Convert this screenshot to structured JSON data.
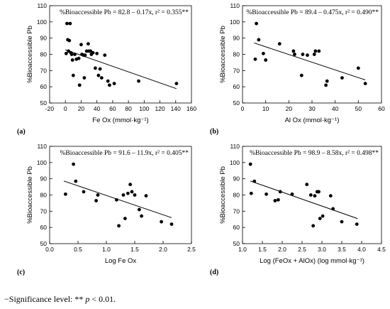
{
  "footnote": {
    "prefix": "−Significance level: ** ",
    "p_symbol": "p",
    "suffix": " < 0.01."
  },
  "chart_data": [
    {
      "type": "scatter",
      "panel_label": "(a)",
      "equation": "%Bioaccessible Pb = 82.8 – 0.17x, r² = 0.355**",
      "xlabel": "Fe Ox (mmol·kg⁻¹)",
      "ylabel": "%Bioaccessible Pb",
      "xlim": [
        -20,
        160
      ],
      "ylim": [
        50,
        110
      ],
      "xticks": [
        -20,
        0,
        20,
        40,
        60,
        80,
        100,
        120,
        140,
        160
      ],
      "yticks": [
        50,
        60,
        70,
        80,
        90,
        100,
        110
      ],
      "grid": false,
      "trendline": {
        "intercept": 82.8,
        "slope": -0.17,
        "x_range": [
          0,
          141
        ]
      },
      "points": [
        {
          "x": 1,
          "y": 80.5
        },
        {
          "x": 2,
          "y": 99
        },
        {
          "x": 3,
          "y": 89
        },
        {
          "x": 4,
          "y": 82
        },
        {
          "x": 5,
          "y": 88.5
        },
        {
          "x": 6,
          "y": 99
        },
        {
          "x": 7,
          "y": 81
        },
        {
          "x": 8,
          "y": 80
        },
        {
          "x": 9,
          "y": 76.5
        },
        {
          "x": 10,
          "y": 67
        },
        {
          "x": 12,
          "y": 80
        },
        {
          "x": 14,
          "y": 77
        },
        {
          "x": 17,
          "y": 77.5
        },
        {
          "x": 18,
          "y": 61
        },
        {
          "x": 20,
          "y": 86
        },
        {
          "x": 21,
          "y": 80
        },
        {
          "x": 23,
          "y": 79.5
        },
        {
          "x": 24,
          "y": 65.5
        },
        {
          "x": 25,
          "y": 79.5
        },
        {
          "x": 27,
          "y": 82
        },
        {
          "x": 29,
          "y": 86.5
        },
        {
          "x": 30,
          "y": 82
        },
        {
          "x": 32,
          "y": 82
        },
        {
          "x": 33,
          "y": 80
        },
        {
          "x": 35,
          "y": 81
        },
        {
          "x": 38,
          "y": 71.5
        },
        {
          "x": 40,
          "y": 80.5
        },
        {
          "x": 42,
          "y": 67
        },
        {
          "x": 44,
          "y": 71
        },
        {
          "x": 46,
          "y": 65.5
        },
        {
          "x": 50,
          "y": 79.5
        },
        {
          "x": 54,
          "y": 63.5
        },
        {
          "x": 56,
          "y": 61
        },
        {
          "x": 62,
          "y": 62
        },
        {
          "x": 93,
          "y": 63.5
        },
        {
          "x": 141,
          "y": 62
        }
      ]
    },
    {
      "type": "scatter",
      "panel_label": "(b)",
      "equation": "%Bioaccessible Pb = 89.4 – 0.475x, r² = 0.490**",
      "xlabel": "Al Ox (mmol·kg⁻¹)",
      "ylabel": "%Bioaccessible Pb",
      "xlim": [
        0,
        60
      ],
      "ylim": [
        50,
        110
      ],
      "xticks": [
        0,
        10,
        20,
        30,
        40,
        50,
        60
      ],
      "yticks": [
        50,
        60,
        70,
        80,
        90,
        100,
        110
      ],
      "grid": false,
      "trendline": {
        "intercept": 89.4,
        "slope": -0.475,
        "x_range": [
          5,
          53
        ]
      },
      "points": [
        {
          "x": 5.5,
          "y": 77
        },
        {
          "x": 6,
          "y": 99
        },
        {
          "x": 7,
          "y": 89
        },
        {
          "x": 9,
          "y": 80.5
        },
        {
          "x": 10,
          "y": 76.5
        },
        {
          "x": 16,
          "y": 86.5
        },
        {
          "x": 22,
          "y": 82
        },
        {
          "x": 22.5,
          "y": 80
        },
        {
          "x": 25.5,
          "y": 67
        },
        {
          "x": 26,
          "y": 80
        },
        {
          "x": 28,
          "y": 79.5
        },
        {
          "x": 31,
          "y": 80
        },
        {
          "x": 31.5,
          "y": 82
        },
        {
          "x": 33,
          "y": 82
        },
        {
          "x": 36,
          "y": 61
        },
        {
          "x": 36.5,
          "y": 63.5
        },
        {
          "x": 43,
          "y": 65.5
        },
        {
          "x": 50,
          "y": 71.5
        },
        {
          "x": 53,
          "y": 62
        }
      ]
    },
    {
      "type": "scatter",
      "panel_label": "(c)",
      "equation": "%Bioaccessible Pb = 91.6 – 11.9x, r² = 0.405**",
      "xlabel": "Log Fe Ox",
      "ylabel": "%Bioaccessible Pb",
      "xlim": [
        0.0,
        2.5
      ],
      "ylim": [
        50,
        110
      ],
      "xticks": [
        "0.0",
        "0.5",
        "1.0",
        "1.5",
        "2.0",
        "2.5"
      ],
      "yticks": [
        50,
        60,
        70,
        80,
        90,
        100,
        110
      ],
      "grid": false,
      "trendline": {
        "intercept": 91.6,
        "slope": -11.9,
        "x_range": [
          0.25,
          2.15
        ]
      },
      "points": [
        {
          "x": 0.28,
          "y": 80.5
        },
        {
          "x": 0.42,
          "y": 99
        },
        {
          "x": 0.46,
          "y": 88.5
        },
        {
          "x": 0.6,
          "y": 82
        },
        {
          "x": 0.82,
          "y": 76.5
        },
        {
          "x": 0.85,
          "y": 80
        },
        {
          "x": 1.18,
          "y": 77
        },
        {
          "x": 1.22,
          "y": 61
        },
        {
          "x": 1.3,
          "y": 80
        },
        {
          "x": 1.33,
          "y": 65.5
        },
        {
          "x": 1.38,
          "y": 81
        },
        {
          "x": 1.42,
          "y": 86.5
        },
        {
          "x": 1.45,
          "y": 82
        },
        {
          "x": 1.5,
          "y": 80
        },
        {
          "x": 1.58,
          "y": 71
        },
        {
          "x": 1.62,
          "y": 67
        },
        {
          "x": 1.7,
          "y": 79.5
        },
        {
          "x": 1.97,
          "y": 63.5
        },
        {
          "x": 2.15,
          "y": 62
        }
      ]
    },
    {
      "type": "scatter",
      "panel_label": "(d)",
      "equation": "%Bioaccessible Pb = 98.9 – 8.58x, r² = 0.498**",
      "xlabel": "Log (FeOx + AlOx) (log mmol·kg⁻¹)",
      "ylabel": "%Bioaccessible Pb",
      "xlim": [
        1.0,
        4.5
      ],
      "ylim": [
        50,
        110
      ],
      "xticks": [
        "1.0",
        "1.5",
        "2.0",
        "2.5",
        "3.0",
        "3.5",
        "4.0",
        "4.5"
      ],
      "yticks": [
        50,
        60,
        70,
        80,
        90,
        100,
        110
      ],
      "grid": false,
      "trendline": {
        "intercept": 98.9,
        "slope": -8.58,
        "x_range": [
          1.2,
          3.9
        ]
      },
      "points": [
        {
          "x": 1.2,
          "y": 99
        },
        {
          "x": 1.22,
          "y": 81
        },
        {
          "x": 1.3,
          "y": 88.5
        },
        {
          "x": 1.6,
          "y": 80.5
        },
        {
          "x": 1.82,
          "y": 76.5
        },
        {
          "x": 1.9,
          "y": 77
        },
        {
          "x": 1.95,
          "y": 82
        },
        {
          "x": 2.25,
          "y": 80.5
        },
        {
          "x": 2.62,
          "y": 86.5
        },
        {
          "x": 2.72,
          "y": 80
        },
        {
          "x": 2.78,
          "y": 61
        },
        {
          "x": 2.82,
          "y": 79.5
        },
        {
          "x": 2.88,
          "y": 82
        },
        {
          "x": 2.92,
          "y": 82
        },
        {
          "x": 2.95,
          "y": 65.5
        },
        {
          "x": 3.02,
          "y": 67
        },
        {
          "x": 3.22,
          "y": 79.5
        },
        {
          "x": 3.28,
          "y": 71.5
        },
        {
          "x": 3.5,
          "y": 63.5
        },
        {
          "x": 3.88,
          "y": 62
        }
      ]
    }
  ]
}
